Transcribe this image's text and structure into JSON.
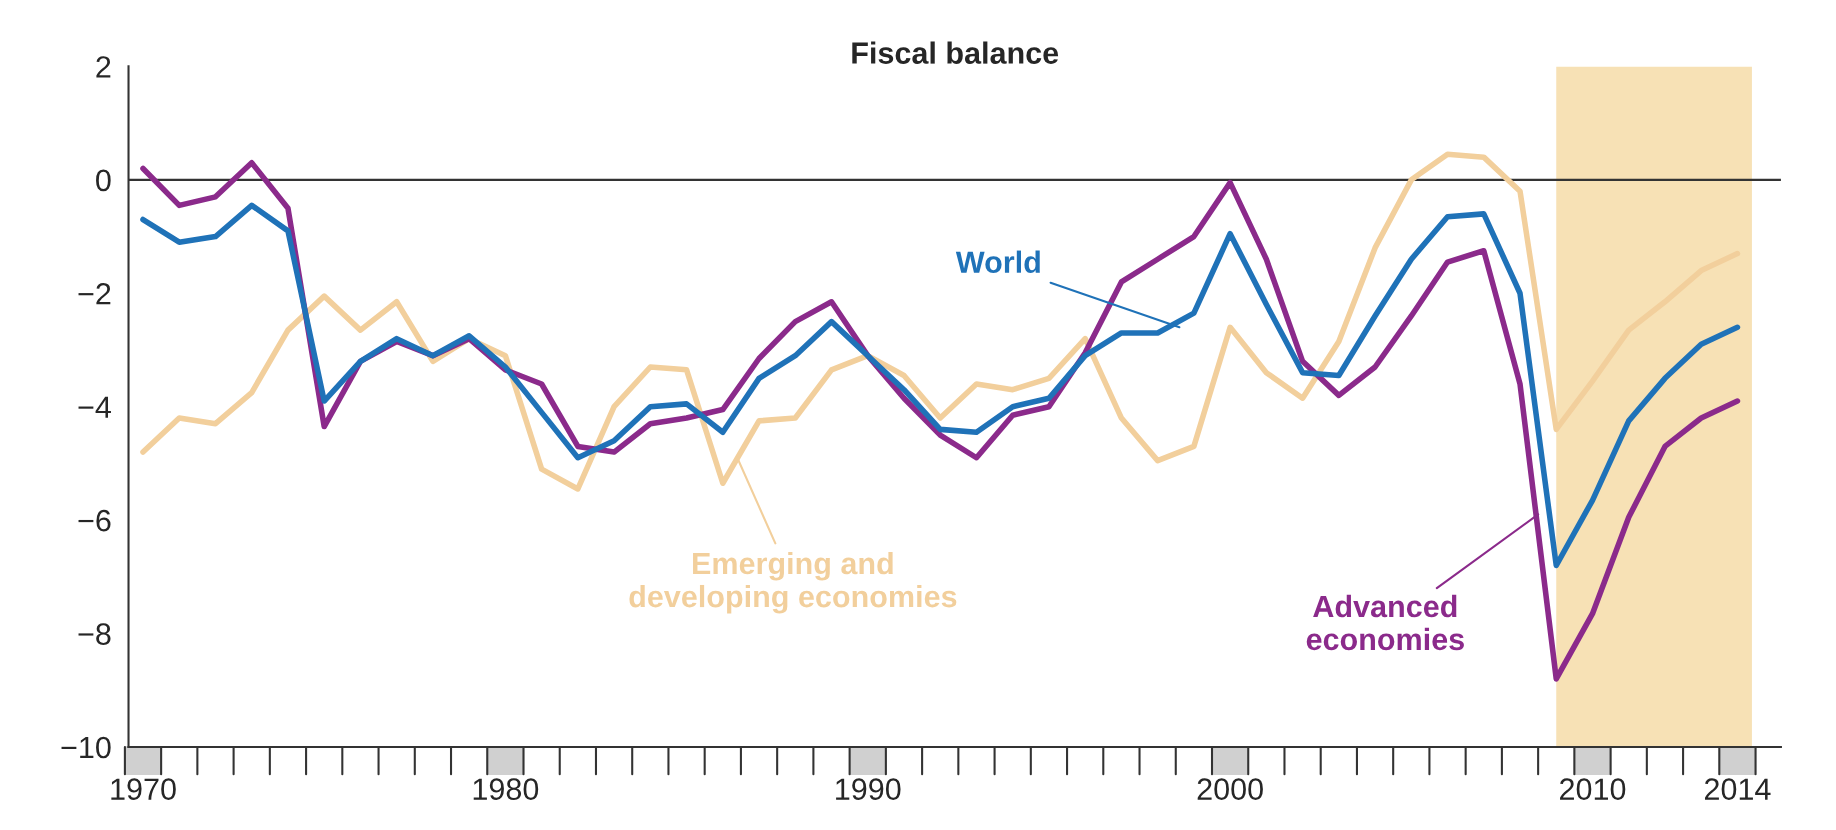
{
  "chart_data": {
    "type": "line",
    "title": "Fiscal balance",
    "x": [
      1970,
      1971,
      1972,
      1973,
      1974,
      1975,
      1976,
      1977,
      1978,
      1979,
      1980,
      1981,
      1982,
      1983,
      1984,
      1985,
      1986,
      1987,
      1988,
      1989,
      1990,
      1991,
      1992,
      1993,
      1994,
      1995,
      1996,
      1997,
      1998,
      1999,
      2000,
      2001,
      2002,
      2003,
      2004,
      2005,
      2006,
      2007,
      2008,
      2009,
      2010,
      2011,
      2012,
      2013,
      2014
    ],
    "series": [
      {
        "color": "#f2cf9c",
        "values": [
          -4.8,
          -4.2,
          -4.3,
          -3.75,
          -2.65,
          -2.05,
          -2.65,
          -2.15,
          -3.2,
          -2.8,
          -3.1,
          -5.1,
          -5.45,
          -4.0,
          -3.3,
          -3.35,
          -5.35,
          -4.25,
          -4.2,
          -3.35,
          -3.1,
          -3.45,
          -4.2,
          -3.6,
          -3.7,
          -3.5,
          -2.8,
          -4.2,
          -4.95,
          -4.7,
          -2.6,
          -3.4,
          -3.85,
          -2.85,
          -1.2,
          0.0,
          0.45,
          0.4,
          -0.2,
          -4.4,
          -3.55,
          -2.65,
          -2.15,
          -1.6,
          -1.3
        ]
      },
      {
        "color": "#8b2a8b",
        "values": [
          0.2,
          -0.45,
          -0.3,
          0.3,
          -0.5,
          -4.35,
          -3.2,
          -2.85,
          -3.1,
          -2.8,
          -3.35,
          -3.6,
          -4.7,
          -4.8,
          -4.3,
          -4.2,
          -4.05,
          -3.15,
          -2.5,
          -2.15,
          -3.1,
          -3.85,
          -4.5,
          -4.9,
          -4.15,
          -4.0,
          -3.05,
          -1.8,
          -1.4,
          -1.0,
          -0.05,
          -1.4,
          -3.2,
          -3.8,
          -3.3,
          -2.4,
          -1.45,
          -1.25,
          -3.6,
          -8.8,
          -7.65,
          -5.95,
          -4.7,
          -4.2,
          -3.9
        ]
      },
      {
        "color": "#1f72b8",
        "values": [
          -0.7,
          -1.1,
          -1.0,
          -0.45,
          -0.9,
          -3.9,
          -3.2,
          -2.8,
          -3.1,
          -2.75,
          -3.3,
          -4.1,
          -4.9,
          -4.6,
          -4.0,
          -3.95,
          -4.45,
          -3.5,
          -3.1,
          -2.5,
          -3.1,
          -3.7,
          -4.4,
          -4.45,
          -4.0,
          -3.85,
          -3.1,
          -2.7,
          -2.7,
          -2.35,
          -0.95,
          -2.2,
          -3.4,
          -3.45,
          -2.4,
          -1.4,
          -0.65,
          -0.6,
          -2.0,
          -6.8,
          -5.65,
          -4.25,
          -3.5,
          -2.9,
          -2.6
        ]
      }
    ],
    "xlim": [
      1969.6,
      2015.2
    ],
    "ylim": [
      -10,
      2
    ],
    "xticks": [
      1970,
      1980,
      1990,
      2000,
      2010,
      2014
    ],
    "yticks": [
      {
        "value": -10,
        "label": "−10"
      },
      {
        "value": -8,
        "label": "−8"
      },
      {
        "value": -6,
        "label": "−6"
      },
      {
        "value": -4,
        "label": "−4"
      },
      {
        "value": -2,
        "label": "−2"
      },
      0,
      2
    ],
    "ref_lines": [
      {
        "axis": "y",
        "value": 0,
        "color": "#333333"
      }
    ],
    "bands": [
      {
        "axis": "x",
        "from": 2009,
        "to": 2014.4,
        "color": "#f7e1b5"
      }
    ],
    "annotations": [
      {
        "text": "World",
        "x": 1998.6,
        "y": -2.6
      },
      {
        "text": "Emerging and\ndeveloping economies",
        "x": 1986.4,
        "y": -4.9
      },
      {
        "text": "Advanced\neconomies",
        "x": 2008.5,
        "y": -5.9
      }
    ],
    "grid": false,
    "legend": false,
    "line_style": "solid",
    "marker": "none"
  }
}
